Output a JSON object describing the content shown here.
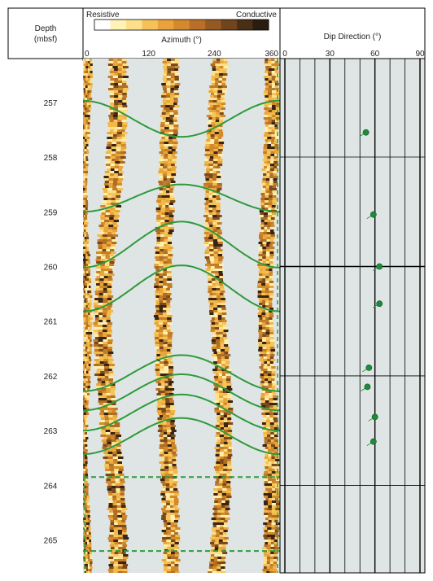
{
  "chart_data": {
    "type": "scatter",
    "depth_header": {
      "line1": "Depth",
      "line2": "(mbsf)"
    },
    "depth_ticks": [
      257,
      258,
      259,
      260,
      261,
      262,
      263,
      264,
      265
    ],
    "depth_range": [
      256.2,
      265.6
    ],
    "color_scale": {
      "left": "Resistive",
      "right": "Conductive",
      "colors": [
        "#ffffff",
        "#fff3b8",
        "#fde089",
        "#f5c25a",
        "#eaa23a",
        "#d48a2c",
        "#b87028",
        "#955a22",
        "#70441c",
        "#4a2f17",
        "#2a1c10"
      ]
    },
    "image_track": {
      "xlabel": "Azimuth (°)",
      "x_ticks": [
        "0",
        "120",
        "240",
        "360"
      ],
      "xlim": [
        0,
        360
      ],
      "sinusoids": [
        {
          "depth": 257.3,
          "amp": 0.33,
          "phase": 180,
          "style": "solid"
        },
        {
          "depth": 258.75,
          "amp": 0.25,
          "phase": 0,
          "style": "solid"
        },
        {
          "depth": 259.6,
          "amp": 0.42,
          "phase": 0,
          "style": "solid"
        },
        {
          "depth": 260.4,
          "amp": 0.42,
          "phase": 0,
          "style": "solid"
        },
        {
          "depth": 261.95,
          "amp": 0.33,
          "phase": 0,
          "style": "solid"
        },
        {
          "depth": 262.3,
          "amp": 0.33,
          "phase": 0,
          "style": "solid"
        },
        {
          "depth": 262.67,
          "amp": 0.33,
          "phase": 0,
          "style": "solid"
        },
        {
          "depth": 263.1,
          "amp": 0.33,
          "phase": 0,
          "style": "solid"
        },
        {
          "depth": 263.85,
          "amp": 0,
          "phase": 0,
          "style": "dashed"
        },
        {
          "depth": 265.2,
          "amp": 0,
          "phase": 0,
          "style": "dashed"
        }
      ]
    },
    "dip_track": {
      "xlabel": "Dip Direction (°)",
      "x_ticks": [
        "0",
        "30",
        "60",
        "90"
      ],
      "xlim": [
        0,
        90
      ],
      "grid": true,
      "points": [
        {
          "depth": 257.55,
          "dip": 54
        },
        {
          "depth": 259.05,
          "dip": 59
        },
        {
          "depth": 260.0,
          "dip": 63
        },
        {
          "depth": 260.68,
          "dip": 63
        },
        {
          "depth": 261.85,
          "dip": 56
        },
        {
          "depth": 262.2,
          "dip": 55
        },
        {
          "depth": 262.75,
          "dip": 60
        },
        {
          "depth": 263.2,
          "dip": 59
        }
      ]
    }
  }
}
